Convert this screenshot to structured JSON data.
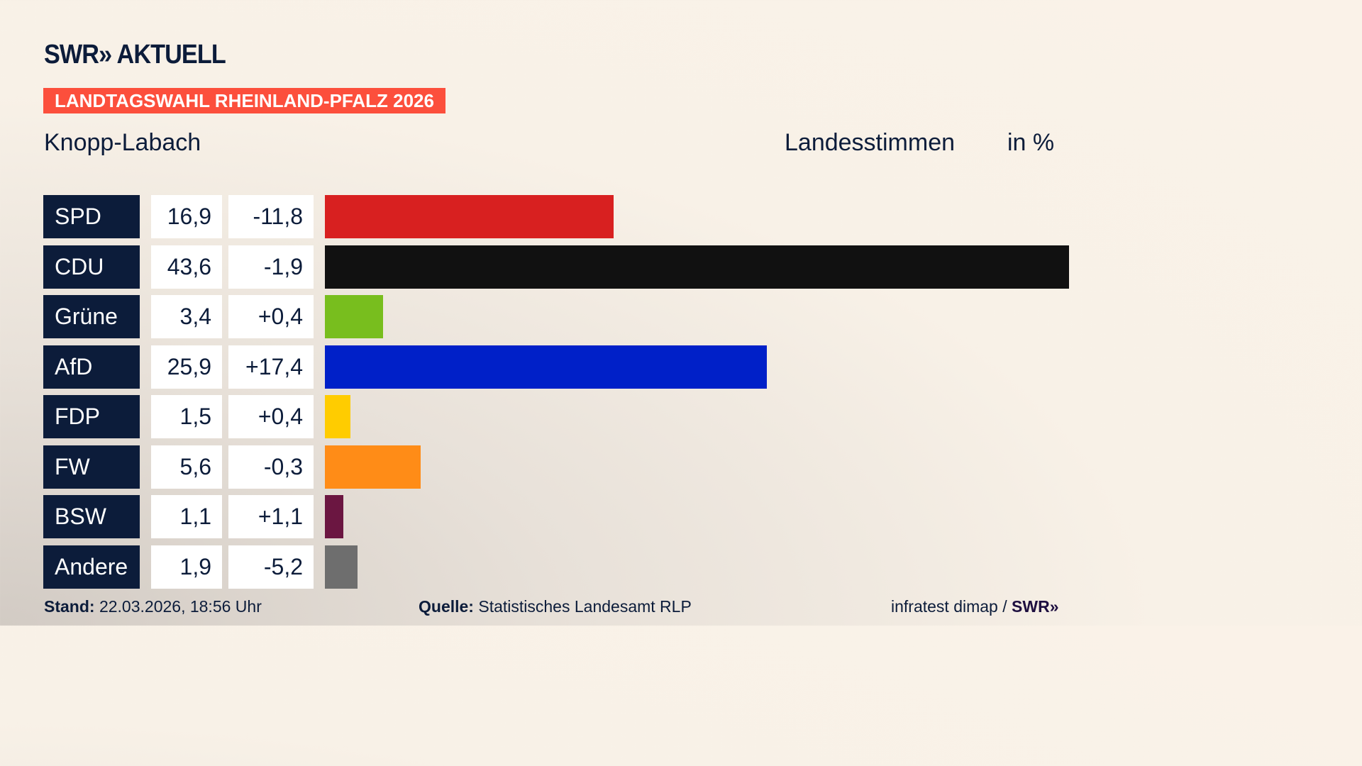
{
  "header": {
    "logo": "SWR» AKTUELL",
    "badge": "LANDTAGSWAHL RHEINLAND-PFALZ 2026",
    "region": "Knopp-Labach",
    "metric": "Landesstimmen",
    "unit": "in %"
  },
  "chart_data": {
    "type": "bar",
    "orientation": "horizontal",
    "xlim": [
      0,
      43.6
    ],
    "categories": [
      "SPD",
      "CDU",
      "Grüne",
      "AfD",
      "FDP",
      "FW",
      "BSW",
      "Andere"
    ],
    "values": [
      "16,9",
      "43,6",
      "3,4",
      "25,9",
      "1,5",
      "5,6",
      "1,1",
      "1,9"
    ],
    "numeric_values": [
      16.9,
      43.6,
      3.4,
      25.9,
      1.5,
      5.6,
      1.1,
      1.9
    ],
    "changes": [
      "-11,8",
      "-1,9",
      "+0,4",
      "+17,4",
      "+0,4",
      "-0,3",
      "+1,1",
      "-5,2"
    ],
    "colors": [
      "#d82020",
      "#111111",
      "#78be1e",
      "#0020c8",
      "#ffcc00",
      "#ff8c17",
      "#6b1641",
      "#6e6e6e"
    ]
  },
  "footer": {
    "stand_label": "Stand:",
    "stand_value": "22.03.2026, 18:56 Uhr",
    "source_label": "Quelle:",
    "source_value": "Statistisches Landesamt RLP",
    "credit": "infratest dimap / ",
    "credit_logo": "SWR»"
  }
}
